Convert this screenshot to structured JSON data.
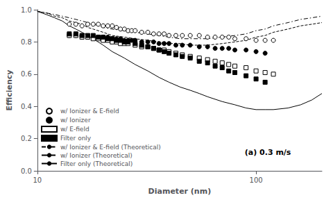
{
  "chart_data": {
    "type": "scatter",
    "xlabel": "Diameter (nm)",
    "ylabel": "Efficiency",
    "annotation": "(a) 0.3 m/s",
    "log": "x",
    "xlim": [
      10,
      200
    ],
    "xticks": [
      10,
      100
    ],
    "ylim": [
      0,
      1.0
    ],
    "yticks": [
      {
        "value": 0,
        "label": "0.0"
      },
      0.2,
      0.4,
      0.6,
      0.8,
      {
        "value": 1.0,
        "label": "1.0"
      }
    ],
    "grid": false,
    "legend": "lower left",
    "series": [
      {
        "name": "w/ Ionizer & E-field",
        "type": "scatter",
        "color": "#000000",
        "marker": "open_circle",
        "x": [
          14,
          15,
          16,
          17,
          18,
          19,
          20,
          21,
          22,
          23,
          24,
          25,
          26,
          27,
          28,
          30,
          32,
          34,
          36,
          38,
          40,
          43,
          46,
          50,
          55,
          60,
          65,
          70,
          75,
          80,
          90,
          100,
          110,
          120
        ],
        "values": [
          0.91,
          0.91,
          0.9,
          0.91,
          0.91,
          0.91,
          0.9,
          0.9,
          0.9,
          0.89,
          0.88,
          0.88,
          0.87,
          0.87,
          0.87,
          0.86,
          0.86,
          0.85,
          0.85,
          0.85,
          0.84,
          0.84,
          0.84,
          0.84,
          0.84,
          0.83,
          0.83,
          0.83,
          0.83,
          0.82,
          0.82,
          0.81,
          0.81,
          0.81
        ]
      },
      {
        "name": "w/ Ionizer",
        "type": "scatter",
        "color": "#000000",
        "marker": "circle",
        "x": [
          14,
          15,
          16,
          17,
          18,
          19,
          20,
          21,
          22,
          23,
          24,
          25,
          26,
          27,
          28,
          30,
          32,
          34,
          36,
          38,
          40,
          43,
          46,
          50,
          55,
          60,
          65,
          70,
          75,
          80,
          90,
          100,
          110
        ],
        "values": [
          0.84,
          0.84,
          0.84,
          0.83,
          0.83,
          0.83,
          0.83,
          0.83,
          0.82,
          0.82,
          0.82,
          0.81,
          0.81,
          0.81,
          0.81,
          0.8,
          0.8,
          0.8,
          0.79,
          0.79,
          0.79,
          0.78,
          0.78,
          0.78,
          0.77,
          0.77,
          0.76,
          0.76,
          0.76,
          0.75,
          0.75,
          0.74,
          0.73
        ]
      },
      {
        "name": "w/ E-field",
        "type": "scatter",
        "color": "#000000",
        "marker": "open_square",
        "x": [
          14,
          15,
          16,
          17,
          18,
          19,
          20,
          21,
          22,
          23,
          24,
          25,
          26,
          28,
          30,
          32,
          34,
          36,
          38,
          40,
          43,
          46,
          50,
          55,
          60,
          65,
          70,
          75,
          80,
          90,
          100,
          110,
          120
        ],
        "values": [
          0.84,
          0.84,
          0.83,
          0.83,
          0.82,
          0.82,
          0.81,
          0.81,
          0.8,
          0.8,
          0.79,
          0.79,
          0.79,
          0.78,
          0.77,
          0.77,
          0.76,
          0.75,
          0.75,
          0.74,
          0.73,
          0.72,
          0.71,
          0.7,
          0.69,
          0.68,
          0.67,
          0.66,
          0.65,
          0.64,
          0.62,
          0.61,
          0.6
        ]
      },
      {
        "name": "Filter only",
        "type": "scatter",
        "color": "#000000",
        "marker": "square",
        "x": [
          14,
          15,
          16,
          17,
          18,
          19,
          20,
          21,
          22,
          23,
          24,
          25,
          26,
          28,
          30,
          32,
          34,
          36,
          38,
          40,
          43,
          46,
          50,
          55,
          60,
          65,
          70,
          75,
          80,
          90,
          100,
          110
        ],
        "values": [
          0.85,
          0.85,
          0.84,
          0.84,
          0.84,
          0.83,
          0.83,
          0.82,
          0.82,
          0.81,
          0.81,
          0.8,
          0.8,
          0.79,
          0.78,
          0.77,
          0.76,
          0.75,
          0.74,
          0.73,
          0.72,
          0.71,
          0.7,
          0.68,
          0.67,
          0.65,
          0.64,
          0.62,
          0.61,
          0.59,
          0.57,
          0.55
        ]
      },
      {
        "name": "w/ Ionizer & E-field (Theoretical)",
        "type": "line",
        "color": "#000000",
        "line_style": "dashdot",
        "x": [
          10,
          11,
          12,
          13,
          14,
          15,
          16,
          17,
          18,
          20,
          22,
          25,
          28,
          32,
          36,
          40,
          45,
          50,
          55,
          60,
          70,
          80,
          90,
          100,
          110,
          120,
          140,
          160,
          180,
          200
        ],
        "values": [
          0.99,
          0.98,
          0.97,
          0.96,
          0.95,
          0.94,
          0.93,
          0.92,
          0.91,
          0.89,
          0.88,
          0.87,
          0.86,
          0.85,
          0.84,
          0.83,
          0.82,
          0.82,
          0.82,
          0.82,
          0.83,
          0.84,
          0.85,
          0.87,
          0.88,
          0.9,
          0.92,
          0.94,
          0.95,
          0.96
        ]
      },
      {
        "name": "w/ Ionizer (Theoretical)",
        "type": "line",
        "color": "#000000",
        "line_style": "dashed",
        "x": [
          10,
          11,
          12,
          13,
          14,
          15,
          16,
          17,
          18,
          20,
          22,
          25,
          28,
          32,
          36,
          40,
          45,
          50,
          55,
          60,
          70,
          80,
          90,
          100,
          110,
          120,
          140,
          160,
          180,
          200
        ],
        "values": [
          0.99,
          0.98,
          0.96,
          0.95,
          0.93,
          0.92,
          0.91,
          0.89,
          0.88,
          0.86,
          0.84,
          0.83,
          0.82,
          0.81,
          0.8,
          0.79,
          0.79,
          0.78,
          0.78,
          0.78,
          0.79,
          0.8,
          0.81,
          0.83,
          0.84,
          0.86,
          0.88,
          0.9,
          0.91,
          0.92
        ]
      },
      {
        "name": "Filter only (Theoretical)",
        "type": "line",
        "color": "#000000",
        "line_style": "solid",
        "x": [
          10,
          11,
          12,
          13,
          14,
          15,
          16,
          17,
          18,
          20,
          22,
          25,
          28,
          32,
          36,
          40,
          45,
          50,
          55,
          60,
          70,
          80,
          90,
          100,
          110,
          120,
          140,
          160,
          180,
          200
        ],
        "values": [
          0.99,
          0.97,
          0.95,
          0.93,
          0.9,
          0.88,
          0.86,
          0.84,
          0.82,
          0.78,
          0.74,
          0.7,
          0.66,
          0.62,
          0.58,
          0.55,
          0.52,
          0.5,
          0.48,
          0.46,
          0.43,
          0.41,
          0.39,
          0.38,
          0.38,
          0.38,
          0.39,
          0.41,
          0.44,
          0.48
        ]
      }
    ]
  }
}
